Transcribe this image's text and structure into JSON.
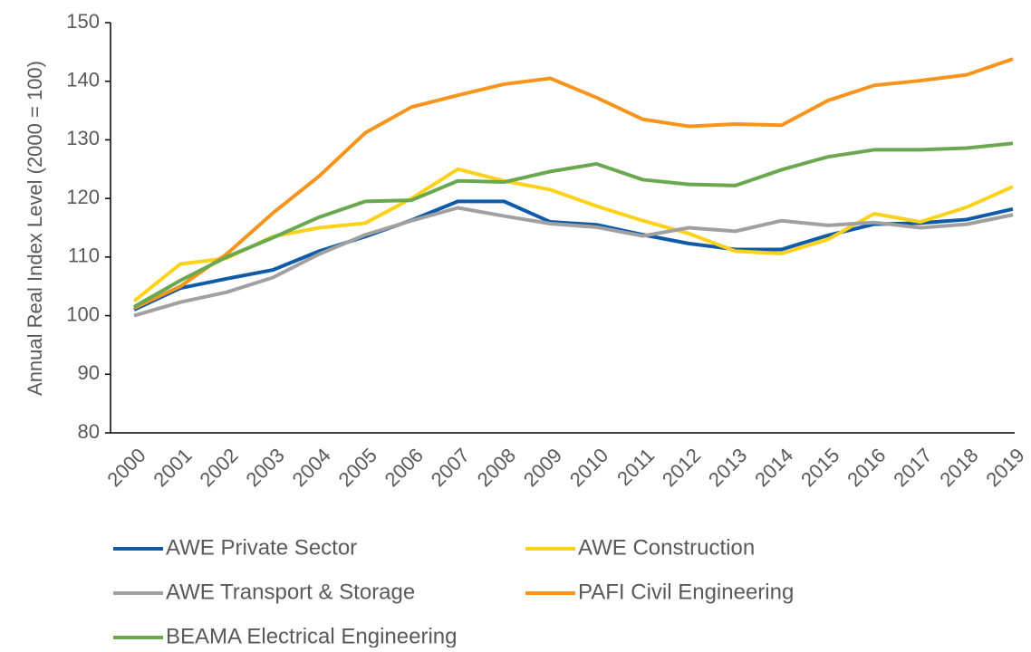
{
  "chart_data": {
    "type": "line",
    "y_label": "Annual Real Index Level (2000 = 100)",
    "categories": [
      "2000",
      "2001",
      "2002",
      "2003",
      "2004",
      "2005",
      "2006",
      "2007",
      "2008",
      "2009",
      "2010",
      "2011",
      "2012",
      "2013",
      "2014",
      "2015",
      "2016",
      "2017",
      "2018",
      "2019"
    ],
    "series": [
      {
        "name": "AWE Private Sector",
        "color": "#0f5ba7",
        "values": [
          101,
          104.7,
          106.3,
          107.8,
          111,
          113.5,
          116.3,
          119.5,
          119.5,
          116,
          115.5,
          113.8,
          112.3,
          111.3,
          111.3,
          113.7,
          115.6,
          115.8,
          116.4,
          118.2
        ]
      },
      {
        "name": "AWE Construction",
        "color": "#ffd11a",
        "values": [
          102.5,
          108.8,
          109.8,
          113.5,
          115,
          115.8,
          120,
          125,
          123,
          121.5,
          118.7,
          116.2,
          114,
          111,
          110.6,
          113,
          117.4,
          116,
          118.5,
          122
        ]
      },
      {
        "name": "AWE Transport & Storage",
        "color": "#a0a0a0",
        "values": [
          100,
          102.3,
          104,
          106.5,
          110.5,
          113.8,
          116.2,
          118.4,
          117,
          115.7,
          115.1,
          113.6,
          115,
          114.4,
          116.2,
          115.4,
          115.9,
          115,
          115.6,
          117.2
        ]
      },
      {
        "name": "PAFI Civil Engineering",
        "color": "#f7941d",
        "values": [
          101.3,
          105,
          110.5,
          117.5,
          123.8,
          131.2,
          135.6,
          137.6,
          139.5,
          140.5,
          137.2,
          133.5,
          132.3,
          132.7,
          132.5,
          136.7,
          139.3,
          140.1,
          141.1,
          143.8
        ]
      },
      {
        "name": "BEAMA Electrical Engineering",
        "color": "#6aa84f",
        "values": [
          101.5,
          106,
          110,
          113.3,
          116.8,
          119.5,
          119.7,
          123,
          122.8,
          124.6,
          125.9,
          123.2,
          122.4,
          122.2,
          124.9,
          127.1,
          128.3,
          128.3,
          128.6,
          129.4
        ]
      }
    ],
    "ylim": [
      80,
      150
    ],
    "yticks": [
      80,
      90,
      100,
      110,
      120,
      130,
      140,
      150
    ]
  }
}
